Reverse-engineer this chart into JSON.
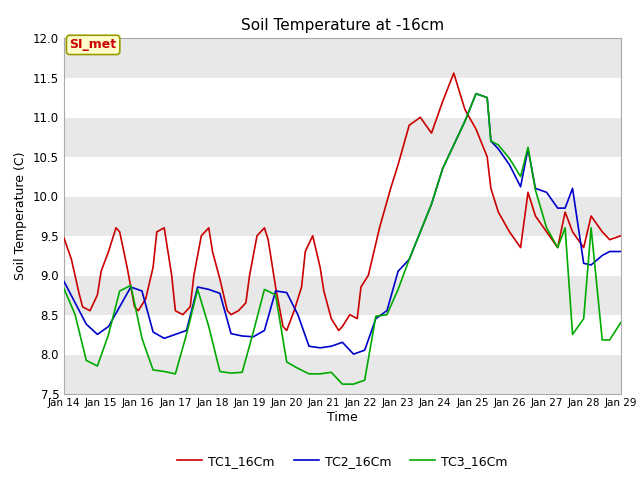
{
  "title": "Soil Temperature at -16cm",
  "xlabel": "Time",
  "ylabel": "Soil Temperature (C)",
  "ylim": [
    7.5,
    12.0
  ],
  "xlim": [
    0,
    15
  ],
  "yticks": [
    7.5,
    8.0,
    8.5,
    9.0,
    9.5,
    10.0,
    10.5,
    11.0,
    11.5,
    12.0
  ],
  "xtick_labels": [
    "Jan 14",
    "Jan 15",
    "Jan 16",
    "Jan 17",
    "Jan 18",
    "Jan 19",
    "Jan 20",
    "Jan 21",
    "Jan 22",
    "Jan 23",
    "Jan 24",
    "Jan 25",
    "Jan 26",
    "Jan 27",
    "Jan 28",
    "Jan 29"
  ],
  "watermark": "SI_met",
  "bg_color": "#ffffff",
  "plot_bg_color": "#e8e8e8",
  "grid_color": "#ffffff",
  "series": [
    {
      "label": "TC1_16Cm",
      "color": "#cc0000",
      "x": [
        0,
        0.2,
        0.4,
        0.5,
        0.7,
        0.9,
        1.0,
        1.2,
        1.4,
        1.5,
        1.7,
        1.9,
        2.0,
        2.2,
        2.4,
        2.5,
        2.7,
        2.9,
        3.0,
        3.2,
        3.4,
        3.5,
        3.7,
        3.9,
        4.0,
        4.2,
        4.4,
        4.5,
        4.7,
        4.9,
        5.0,
        5.2,
        5.4,
        5.5,
        5.7,
        5.9,
        6.0,
        6.2,
        6.4,
        6.5,
        6.7,
        6.9,
        7.0,
        7.2,
        7.4,
        7.5,
        7.7,
        7.9,
        8.0,
        8.2,
        8.5,
        8.8,
        9.0,
        9.3,
        9.6,
        9.9,
        10.2,
        10.5,
        10.8,
        11.1,
        11.4,
        11.5,
        11.7,
        12.0,
        12.3,
        12.5,
        12.7,
        13.0,
        13.3,
        13.5,
        13.7,
        14.0,
        14.2,
        14.5,
        14.7,
        15.0
      ],
      "y": [
        9.47,
        9.2,
        8.78,
        8.6,
        8.55,
        8.75,
        9.05,
        9.3,
        9.6,
        9.55,
        9.1,
        8.6,
        8.55,
        8.7,
        9.1,
        9.55,
        9.6,
        9.0,
        8.55,
        8.5,
        8.6,
        9.0,
        9.5,
        9.6,
        9.3,
        8.95,
        8.55,
        8.5,
        8.55,
        8.65,
        9.0,
        9.5,
        9.6,
        9.45,
        8.85,
        8.35,
        8.3,
        8.55,
        8.85,
        9.3,
        9.5,
        9.1,
        8.8,
        8.45,
        8.3,
        8.35,
        8.5,
        8.45,
        8.85,
        9.0,
        9.6,
        10.1,
        10.4,
        10.9,
        11.0,
        10.8,
        11.2,
        11.56,
        11.1,
        10.85,
        10.5,
        10.1,
        9.8,
        9.55,
        9.35,
        10.05,
        9.75,
        9.55,
        9.35,
        9.8,
        9.55,
        9.35,
        9.75,
        9.55,
        9.45,
        9.5
      ]
    },
    {
      "label": "TC2_16Cm",
      "color": "#0000cc",
      "x": [
        0,
        0.3,
        0.6,
        0.9,
        1.2,
        1.5,
        1.8,
        2.1,
        2.4,
        2.7,
        3.0,
        3.3,
        3.6,
        3.9,
        4.2,
        4.5,
        4.8,
        5.1,
        5.4,
        5.7,
        6.0,
        6.3,
        6.6,
        6.9,
        7.2,
        7.5,
        7.8,
        8.1,
        8.4,
        8.7,
        9.0,
        9.3,
        9.6,
        9.9,
        10.2,
        10.5,
        10.8,
        11.1,
        11.4,
        11.5,
        11.7,
        12.0,
        12.3,
        12.5,
        12.7,
        13.0,
        13.3,
        13.5,
        13.7,
        14.0,
        14.2,
        14.5,
        14.7,
        15.0
      ],
      "y": [
        8.92,
        8.65,
        8.38,
        8.25,
        8.35,
        8.6,
        8.85,
        8.8,
        8.28,
        8.2,
        8.25,
        8.3,
        8.85,
        8.82,
        8.77,
        8.26,
        8.23,
        8.22,
        8.3,
        8.8,
        8.78,
        8.5,
        8.1,
        8.08,
        8.1,
        8.15,
        8.0,
        8.05,
        8.45,
        8.55,
        9.05,
        9.2,
        9.55,
        9.9,
        10.35,
        10.65,
        10.95,
        11.3,
        11.25,
        10.7,
        10.6,
        10.4,
        10.12,
        10.6,
        10.1,
        10.05,
        9.85,
        9.85,
        10.1,
        9.15,
        9.13,
        9.25,
        9.3,
        9.3
      ]
    },
    {
      "label": "TC3_16Cm",
      "color": "#00aa00",
      "x": [
        0,
        0.3,
        0.6,
        0.9,
        1.2,
        1.5,
        1.8,
        2.1,
        2.4,
        2.7,
        3.0,
        3.3,
        3.6,
        3.9,
        4.2,
        4.5,
        4.8,
        5.1,
        5.4,
        5.7,
        6.0,
        6.3,
        6.6,
        6.9,
        7.2,
        7.5,
        7.8,
        8.1,
        8.4,
        8.7,
        9.0,
        9.3,
        9.6,
        9.9,
        10.2,
        10.5,
        10.8,
        11.1,
        11.4,
        11.5,
        11.7,
        12.0,
        12.3,
        12.5,
        12.7,
        13.0,
        13.3,
        13.5,
        13.7,
        14.0,
        14.2,
        14.5,
        14.7,
        15.0
      ],
      "y": [
        8.83,
        8.5,
        7.92,
        7.85,
        8.25,
        8.8,
        8.87,
        8.2,
        7.8,
        7.78,
        7.75,
        8.25,
        8.82,
        8.35,
        7.78,
        7.76,
        7.77,
        8.28,
        8.82,
        8.75,
        7.9,
        7.82,
        7.75,
        7.75,
        7.77,
        7.62,
        7.62,
        7.67,
        8.48,
        8.5,
        8.82,
        9.2,
        9.55,
        9.9,
        10.35,
        10.65,
        10.95,
        11.3,
        11.25,
        10.7,
        10.65,
        10.48,
        10.25,
        10.62,
        10.08,
        9.6,
        9.35,
        9.6,
        8.25,
        8.45,
        9.6,
        8.18,
        8.18,
        8.4
      ]
    }
  ]
}
